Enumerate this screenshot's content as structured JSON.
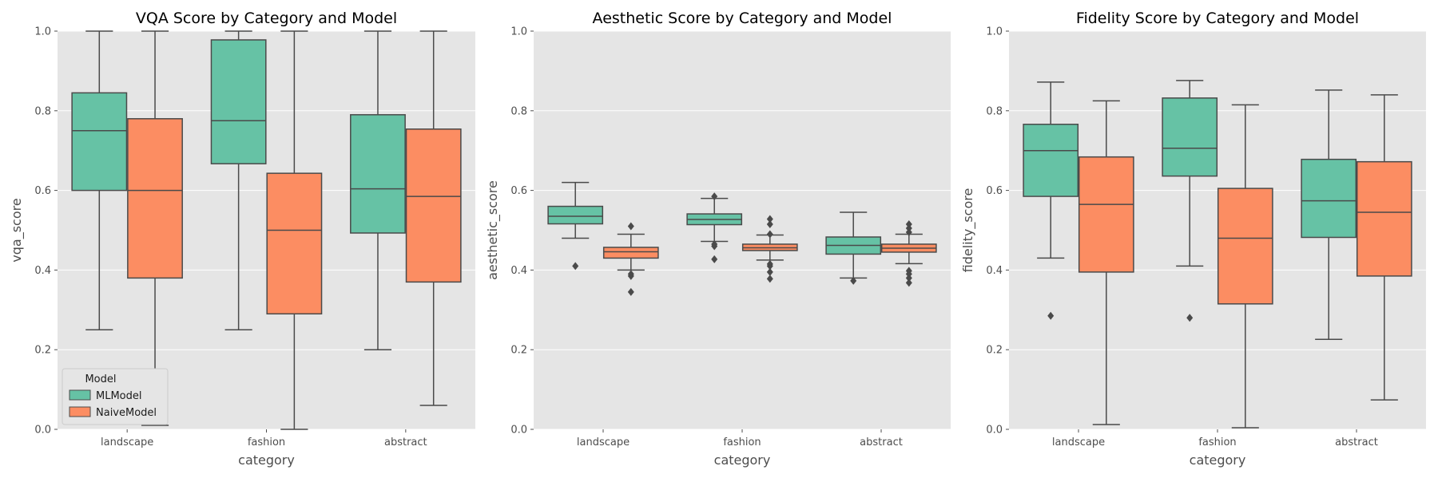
{
  "chart_data": [
    {
      "type": "box",
      "title": "VQA Score by Category and Model",
      "xlabel": "category",
      "ylabel": "vqa_score",
      "ylim": [
        0,
        1.0
      ],
      "yticks": [
        "0.0",
        "0.2",
        "0.4",
        "0.6",
        "0.8",
        "1.0"
      ],
      "categories": [
        "landscape",
        "fashion",
        "abstract"
      ],
      "legend": {
        "title": "Model",
        "placement": "lower-left"
      },
      "series": [
        {
          "name": "MLModel",
          "color": "#66c2a5",
          "boxes": [
            {
              "whislo": 0.25,
              "q1": 0.6,
              "med": 0.75,
              "q3": 0.845,
              "whishi": 1.0,
              "fliers": []
            },
            {
              "whislo": 0.25,
              "q1": 0.667,
              "med": 0.775,
              "q3": 0.978,
              "whishi": 1.0,
              "fliers": []
            },
            {
              "whislo": 0.2,
              "q1": 0.493,
              "med": 0.604,
              "q3": 0.79,
              "whishi": 1.0,
              "fliers": []
            }
          ]
        },
        {
          "name": "NaiveModel",
          "color": "#fc8d62",
          "boxes": [
            {
              "whislo": 0.01,
              "q1": 0.38,
              "med": 0.6,
              "q3": 0.78,
              "whishi": 1.0,
              "fliers": []
            },
            {
              "whislo": 0.0,
              "q1": 0.29,
              "med": 0.5,
              "q3": 0.643,
              "whishi": 1.0,
              "fliers": []
            },
            {
              "whislo": 0.06,
              "q1": 0.37,
              "med": 0.585,
              "q3": 0.754,
              "whishi": 1.0,
              "fliers": []
            }
          ]
        }
      ]
    },
    {
      "type": "box",
      "title": "Aesthetic Score by Category and Model",
      "xlabel": "category",
      "ylabel": "aesthetic_score",
      "ylim": [
        0,
        1.0
      ],
      "yticks": [
        "0.0",
        "0.2",
        "0.4",
        "0.6",
        "0.8",
        "1.0"
      ],
      "categories": [
        "landscape",
        "fashion",
        "abstract"
      ],
      "series": [
        {
          "name": "MLModel",
          "color": "#66c2a5",
          "boxes": [
            {
              "whislo": 0.48,
              "q1": 0.516,
              "med": 0.535,
              "q3": 0.56,
              "whishi": 0.62,
              "fliers": [
                0.41
              ]
            },
            {
              "whislo": 0.472,
              "q1": 0.514,
              "med": 0.527,
              "q3": 0.541,
              "whishi": 0.58,
              "fliers": [
                0.427,
                0.46,
                0.465,
                0.585
              ]
            },
            {
              "whislo": 0.38,
              "q1": 0.44,
              "med": 0.462,
              "q3": 0.483,
              "whishi": 0.545,
              "fliers": [
                0.373
              ]
            }
          ]
        },
        {
          "name": "NaiveModel",
          "color": "#fc8d62",
          "boxes": [
            {
              "whislo": 0.4,
              "q1": 0.43,
              "med": 0.446,
              "q3": 0.457,
              "whishi": 0.49,
              "fliers": [
                0.345,
                0.385,
                0.39,
                0.51
              ]
            },
            {
              "whislo": 0.425,
              "q1": 0.449,
              "med": 0.456,
              "q3": 0.465,
              "whishi": 0.488,
              "fliers": [
                0.378,
                0.395,
                0.41,
                0.415,
                0.49,
                0.515,
                0.528
              ]
            },
            {
              "whislo": 0.416,
              "q1": 0.445,
              "med": 0.455,
              "q3": 0.465,
              "whishi": 0.49,
              "fliers": [
                0.368,
                0.38,
                0.39,
                0.398,
                0.495,
                0.505,
                0.515
              ]
            }
          ]
        }
      ]
    },
    {
      "type": "box",
      "title": "Fidelity Score by Category and Model",
      "xlabel": "category",
      "ylabel": "fidelity_score",
      "ylim": [
        0,
        1.0
      ],
      "yticks": [
        "0.0",
        "0.2",
        "0.4",
        "0.6",
        "0.8",
        "1.0"
      ],
      "categories": [
        "landscape",
        "fashion",
        "abstract"
      ],
      "series": [
        {
          "name": "MLModel",
          "color": "#66c2a5",
          "boxes": [
            {
              "whislo": 0.43,
              "q1": 0.585,
              "med": 0.7,
              "q3": 0.766,
              "whishi": 0.872,
              "fliers": [
                0.285
              ]
            },
            {
              "whislo": 0.41,
              "q1": 0.636,
              "med": 0.706,
              "q3": 0.832,
              "whishi": 0.876,
              "fliers": [
                0.28
              ]
            },
            {
              "whislo": 0.226,
              "q1": 0.482,
              "med": 0.574,
              "q3": 0.678,
              "whishi": 0.852,
              "fliers": []
            }
          ]
        },
        {
          "name": "NaiveModel",
          "color": "#fc8d62",
          "boxes": [
            {
              "whislo": 0.012,
              "q1": 0.395,
              "med": 0.565,
              "q3": 0.684,
              "whishi": 0.825,
              "fliers": []
            },
            {
              "whislo": 0.004,
              "q1": 0.315,
              "med": 0.48,
              "q3": 0.605,
              "whishi": 0.815,
              "fliers": []
            },
            {
              "whislo": 0.074,
              "q1": 0.385,
              "med": 0.545,
              "q3": 0.672,
              "whishi": 0.84,
              "fliers": []
            }
          ]
        }
      ]
    }
  ]
}
